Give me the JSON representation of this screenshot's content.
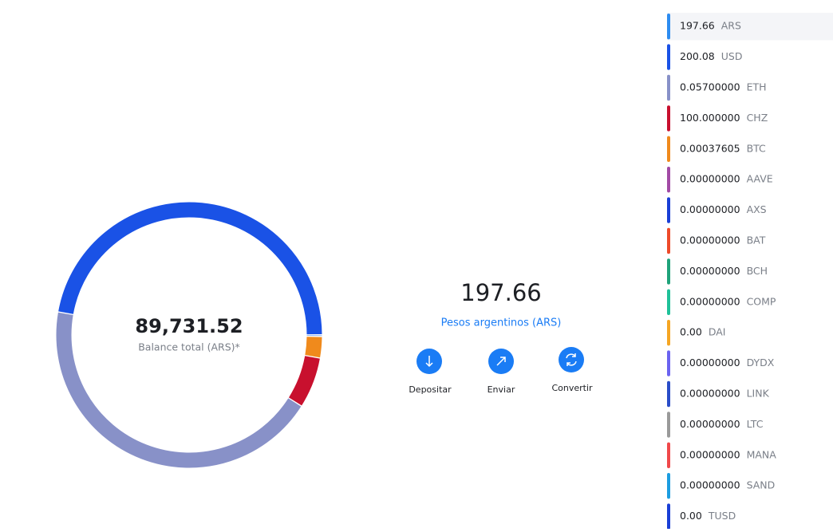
{
  "balance": {
    "total": "89,731.52",
    "label": "Balance total (ARS)*",
    "donut": {
      "type": "donut",
      "values": [
        47.2,
        0.2,
        2.6,
        6.2,
        43.8
      ],
      "colors": [
        "#1a52e6",
        "#4f8ef7",
        "#f08a1c",
        "#c8102e",
        "#8891c8"
      ]
    }
  },
  "selected": {
    "amount": "197.66",
    "name": "Pesos argentinos (ARS)"
  },
  "actions": [
    "Depositar",
    "Enviar",
    "Convertir"
  ],
  "assets": [
    {
      "amount": "197.66",
      "code": "ARS",
      "color": "#2d8cf0"
    },
    {
      "amount": "200.08",
      "code": "USD",
      "color": "#1a52e6"
    },
    {
      "amount": "0.05700000",
      "code": "ETH",
      "color": "#8891c8"
    },
    {
      "amount": "100.000000",
      "code": "CHZ",
      "color": "#c8102e"
    },
    {
      "amount": "0.00037605",
      "code": "BTC",
      "color": "#f08a1c"
    },
    {
      "amount": "0.00000000",
      "code": "AAVE",
      "color": "#a24aa5"
    },
    {
      "amount": "0.00000000",
      "code": "AXS",
      "color": "#1a3fd6"
    },
    {
      "amount": "0.00000000",
      "code": "BAT",
      "color": "#ee4a2a"
    },
    {
      "amount": "0.00000000",
      "code": "BCH",
      "color": "#1fa37a"
    },
    {
      "amount": "0.00000000",
      "code": "COMP",
      "color": "#1fc199"
    },
    {
      "amount": "0.00",
      "code": "DAI",
      "color": "#f5a623"
    },
    {
      "amount": "0.00000000",
      "code": "DYDX",
      "color": "#6b63f0"
    },
    {
      "amount": "0.00000000",
      "code": "LINK",
      "color": "#2a4dc8"
    },
    {
      "amount": "0.00000000",
      "code": "LTC",
      "color": "#9a9a9a"
    },
    {
      "amount": "0.00000000",
      "code": "MANA",
      "color": "#f0484a"
    },
    {
      "amount": "0.00000000",
      "code": "SAND",
      "color": "#1c9de0"
    },
    {
      "amount": "0.00",
      "code": "TUSD",
      "color": "#1a3fd6"
    }
  ]
}
